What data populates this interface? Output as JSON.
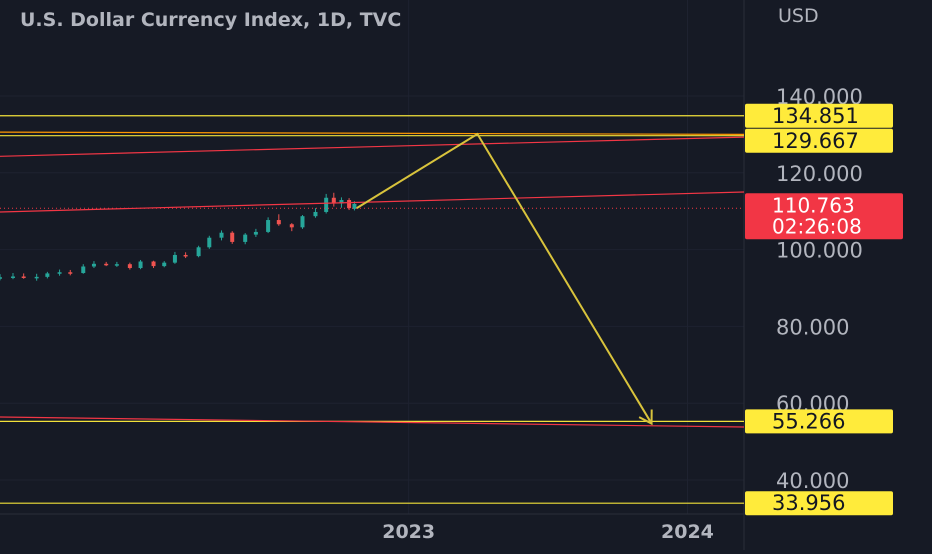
{
  "chart_data": {
    "type": "candlestick",
    "title": "U.S. Dollar Currency Index, 1D, TVC",
    "currency": "USD",
    "y_ticks": [
      "140.000",
      "120.000",
      "100.000",
      "80.000",
      "60.000",
      "40.000"
    ],
    "y_tick_values": [
      140,
      120,
      100,
      80,
      60,
      40
    ],
    "x_ticks": [
      "2023",
      "2024"
    ],
    "ylim": [
      29,
      145
    ],
    "x_domain": [
      "2021-07-15",
      "2024-03-15"
    ],
    "grid": true,
    "current_price": {
      "value": 110.763,
      "text": "110.763",
      "countdown": "02:26:08",
      "color": "#f23645"
    },
    "price_labels": [
      {
        "value": 134.851,
        "text": "134.851",
        "color": "#ffeb3b"
      },
      {
        "value": 129.667,
        "text": "129.667",
        "color": "#ffeb3b"
      },
      {
        "value": 55.266,
        "text": "55.266",
        "color": "#ffeb3b"
      },
      {
        "value": 33.956,
        "text": "33.956",
        "color": "#ffeb3b"
      }
    ],
    "horizontal_lines": [
      {
        "value": 134.851,
        "color": "#f2e13a"
      },
      {
        "value": 129.667,
        "color": "#f2e13a"
      },
      {
        "value": 55.266,
        "color": "#f2e13a"
      },
      {
        "value": 33.956,
        "color": "#f2e13a"
      }
    ],
    "trend_lines": [
      {
        "x1": "2021-07-15",
        "y1": 130.6,
        "x2": "2024-03-15",
        "y2": 130.0,
        "color": "#ff9800"
      },
      {
        "x1": "2021-07-15",
        "y1": 124.3,
        "x2": "2024-03-15",
        "y2": 129.3,
        "color": "#f23645"
      },
      {
        "x1": "2021-07-15",
        "y1": 109.8,
        "x2": "2024-03-15",
        "y2": 115.0,
        "color": "#f23645"
      },
      {
        "x1": "2021-07-15",
        "y1": 56.4,
        "x2": "2024-03-15",
        "y2": 53.8,
        "color": "#f23645"
      }
    ],
    "projection_path": [
      {
        "x": "2022-10-25",
        "y": 110.8
      },
      {
        "x": "2023-04-01",
        "y": 130.1
      },
      {
        "x": "2023-11-15",
        "y": 54.7
      }
    ],
    "projection_color": "#d8c33c",
    "candles": [
      {
        "t": "2021-07-15",
        "o": 92.6,
        "h": 93.6,
        "l": 92.0,
        "c": 92.8
      },
      {
        "t": "2021-08-01",
        "o": 92.8,
        "h": 93.9,
        "l": 92.3,
        "c": 93.0
      },
      {
        "t": "2021-08-15",
        "o": 93.0,
        "h": 93.8,
        "l": 92.4,
        "c": 92.7
      },
      {
        "t": "2021-09-01",
        "o": 92.7,
        "h": 93.7,
        "l": 91.9,
        "c": 92.9
      },
      {
        "t": "2021-09-15",
        "o": 92.9,
        "h": 94.2,
        "l": 92.5,
        "c": 93.8
      },
      {
        "t": "2021-10-01",
        "o": 93.8,
        "h": 94.8,
        "l": 93.2,
        "c": 94.1
      },
      {
        "t": "2021-10-15",
        "o": 94.1,
        "h": 94.7,
        "l": 93.3,
        "c": 93.9
      },
      {
        "t": "2021-11-01",
        "o": 93.9,
        "h": 96.2,
        "l": 93.7,
        "c": 95.6
      },
      {
        "t": "2021-11-15",
        "o": 95.6,
        "h": 97.0,
        "l": 95.2,
        "c": 96.3
      },
      {
        "t": "2021-12-01",
        "o": 96.3,
        "h": 96.8,
        "l": 95.7,
        "c": 96.0
      },
      {
        "t": "2021-12-15",
        "o": 96.0,
        "h": 96.8,
        "l": 95.5,
        "c": 96.2
      },
      {
        "t": "2022-01-01",
        "o": 96.2,
        "h": 96.6,
        "l": 94.8,
        "c": 95.2
      },
      {
        "t": "2022-01-15",
        "o": 95.2,
        "h": 97.3,
        "l": 94.9,
        "c": 96.9
      },
      {
        "t": "2022-02-01",
        "o": 96.9,
        "h": 97.1,
        "l": 95.2,
        "c": 95.7
      },
      {
        "t": "2022-02-15",
        "o": 95.7,
        "h": 97.0,
        "l": 95.4,
        "c": 96.6
      },
      {
        "t": "2022-03-01",
        "o": 96.6,
        "h": 99.4,
        "l": 96.3,
        "c": 98.6
      },
      {
        "t": "2022-03-15",
        "o": 98.6,
        "h": 99.3,
        "l": 97.8,
        "c": 98.3
      },
      {
        "t": "2022-04-01",
        "o": 98.3,
        "h": 101.0,
        "l": 98.0,
        "c": 100.6
      },
      {
        "t": "2022-04-15",
        "o": 100.6,
        "h": 103.6,
        "l": 100.2,
        "c": 103.1
      },
      {
        "t": "2022-05-01",
        "o": 103.1,
        "h": 105.0,
        "l": 102.4,
        "c": 104.4
      },
      {
        "t": "2022-05-15",
        "o": 104.4,
        "h": 104.8,
        "l": 101.5,
        "c": 102.0
      },
      {
        "t": "2022-06-01",
        "o": 102.0,
        "h": 104.3,
        "l": 101.4,
        "c": 103.9
      },
      {
        "t": "2022-06-15",
        "o": 103.9,
        "h": 105.4,
        "l": 103.3,
        "c": 104.6
      },
      {
        "t": "2022-07-01",
        "o": 104.6,
        "h": 108.4,
        "l": 104.3,
        "c": 107.7
      },
      {
        "t": "2022-07-15",
        "o": 107.7,
        "h": 109.2,
        "l": 106.2,
        "c": 106.6
      },
      {
        "t": "2022-08-01",
        "o": 106.6,
        "h": 106.9,
        "l": 104.8,
        "c": 105.8
      },
      {
        "t": "2022-08-15",
        "o": 105.8,
        "h": 109.0,
        "l": 105.4,
        "c": 108.7
      },
      {
        "t": "2022-09-01",
        "o": 108.7,
        "h": 110.8,
        "l": 108.3,
        "c": 109.8
      },
      {
        "t": "2022-09-15",
        "o": 109.8,
        "h": 114.5,
        "l": 109.4,
        "c": 113.5
      },
      {
        "t": "2022-09-25",
        "o": 113.5,
        "h": 114.8,
        "l": 111.2,
        "c": 112.0
      },
      {
        "t": "2022-10-05",
        "o": 112.0,
        "h": 113.6,
        "l": 110.9,
        "c": 112.9
      },
      {
        "t": "2022-10-15",
        "o": 112.9,
        "h": 113.4,
        "l": 110.3,
        "c": 110.8
      },
      {
        "t": "2022-10-22",
        "o": 110.6,
        "h": 112.6,
        "l": 110.2,
        "c": 111.9
      }
    ]
  }
}
